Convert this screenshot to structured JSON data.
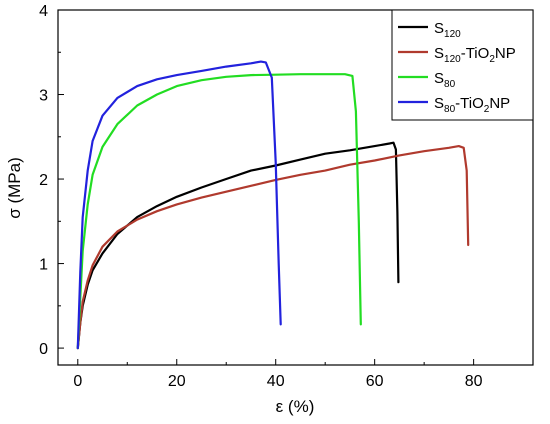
{
  "chart_data": {
    "type": "line",
    "title": "",
    "xlabel": "ε (%)",
    "ylabel": "σ (MPa)",
    "xlim": [
      -4,
      92
    ],
    "ylim": [
      -0.2,
      4
    ],
    "x_ticks": [
      0,
      20,
      40,
      60,
      80
    ],
    "y_ticks": [
      0,
      1,
      2,
      3,
      4
    ],
    "grid": false,
    "legend_position": "top-right",
    "series": [
      {
        "name": "S120",
        "name_parts": {
          "base": "S",
          "sub": "120",
          "rest": "",
          "rest_sub": "",
          "tail": ""
        },
        "color": "#000000",
        "points": [
          [
            0,
            0
          ],
          [
            0.5,
            0.3
          ],
          [
            1,
            0.5
          ],
          [
            2,
            0.75
          ],
          [
            3,
            0.92
          ],
          [
            5,
            1.12
          ],
          [
            8,
            1.35
          ],
          [
            12,
            1.55
          ],
          [
            16,
            1.68
          ],
          [
            20,
            1.79
          ],
          [
            25,
            1.9
          ],
          [
            30,
            2.0
          ],
          [
            35,
            2.1
          ],
          [
            40,
            2.16
          ],
          [
            45,
            2.23
          ],
          [
            50,
            2.3
          ],
          [
            55,
            2.34
          ],
          [
            60,
            2.39
          ],
          [
            63,
            2.42
          ],
          [
            63.8,
            2.43
          ],
          [
            64.3,
            2.35
          ],
          [
            64.6,
            1.6
          ],
          [
            64.8,
            0.78
          ]
        ]
      },
      {
        "name": "S120-TiO2NP",
        "name_parts": {
          "base": "S",
          "sub": "120",
          "rest": "-TiO",
          "rest_sub": "2",
          "tail": "NP"
        },
        "color": "#b03a2e",
        "points": [
          [
            0,
            0
          ],
          [
            0.5,
            0.3
          ],
          [
            1,
            0.55
          ],
          [
            2,
            0.8
          ],
          [
            3,
            0.98
          ],
          [
            5,
            1.2
          ],
          [
            8,
            1.38
          ],
          [
            12,
            1.52
          ],
          [
            16,
            1.62
          ],
          [
            20,
            1.7
          ],
          [
            25,
            1.78
          ],
          [
            30,
            1.85
          ],
          [
            35,
            1.92
          ],
          [
            40,
            1.99
          ],
          [
            45,
            2.05
          ],
          [
            50,
            2.1
          ],
          [
            55,
            2.17
          ],
          [
            60,
            2.22
          ],
          [
            65,
            2.28
          ],
          [
            70,
            2.33
          ],
          [
            75,
            2.37
          ],
          [
            77,
            2.39
          ],
          [
            78,
            2.37
          ],
          [
            78.6,
            2.1
          ],
          [
            78.9,
            1.22
          ]
        ]
      },
      {
        "name": "S80",
        "name_parts": {
          "base": "S",
          "sub": "80",
          "rest": "",
          "rest_sub": "",
          "tail": ""
        },
        "color": "#22dd22",
        "points": [
          [
            0,
            0
          ],
          [
            0.5,
            0.6
          ],
          [
            1,
            1.15
          ],
          [
            2,
            1.7
          ],
          [
            3,
            2.05
          ],
          [
            5,
            2.38
          ],
          [
            8,
            2.65
          ],
          [
            12,
            2.87
          ],
          [
            16,
            3.0
          ],
          [
            20,
            3.1
          ],
          [
            25,
            3.17
          ],
          [
            30,
            3.21
          ],
          [
            35,
            3.23
          ],
          [
            40,
            3.235
          ],
          [
            45,
            3.24
          ],
          [
            50,
            3.24
          ],
          [
            54,
            3.24
          ],
          [
            55.5,
            3.22
          ],
          [
            56.2,
            2.8
          ],
          [
            56.8,
            1.5
          ],
          [
            57.2,
            0.28
          ]
        ]
      },
      {
        "name": "S80-TiO2NP",
        "name_parts": {
          "base": "S",
          "sub": "80",
          "rest": "-TiO",
          "rest_sub": "2",
          "tail": "NP"
        },
        "color": "#2222dd",
        "points": [
          [
            0,
            0
          ],
          [
            0.5,
            0.9
          ],
          [
            1,
            1.55
          ],
          [
            2,
            2.1
          ],
          [
            3,
            2.45
          ],
          [
            5,
            2.75
          ],
          [
            8,
            2.96
          ],
          [
            12,
            3.1
          ],
          [
            16,
            3.18
          ],
          [
            20,
            3.23
          ],
          [
            25,
            3.28
          ],
          [
            30,
            3.33
          ],
          [
            35,
            3.37
          ],
          [
            37,
            3.39
          ],
          [
            38,
            3.38
          ],
          [
            39.2,
            3.2
          ],
          [
            40,
            2.2
          ],
          [
            40.6,
            1.0
          ],
          [
            41,
            0.28
          ]
        ]
      }
    ]
  }
}
